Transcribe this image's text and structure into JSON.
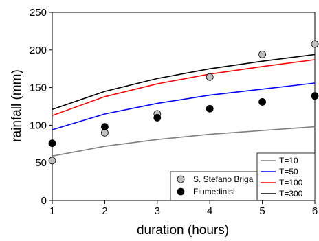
{
  "chart_data": {
    "type": "line",
    "xlabel": "duration (hours)",
    "ylabel": "rainfall (mm)",
    "xlim": [
      1,
      6
    ],
    "ylim": [
      0,
      250
    ],
    "x_ticks": [
      1,
      2,
      3,
      4,
      5,
      6
    ],
    "y_ticks": [
      0,
      50,
      100,
      150,
      200,
      250
    ],
    "grid": false,
    "x": [
      1,
      2,
      3,
      4,
      5,
      6
    ],
    "series": [
      {
        "name": "T=10",
        "kind": "line",
        "color": "#808080",
        "values": [
          59,
          72,
          81,
          88,
          93,
          98
        ]
      },
      {
        "name": "T=50",
        "kind": "line",
        "color": "#0000ff",
        "values": [
          94,
          115,
          129,
          140,
          148,
          156
        ]
      },
      {
        "name": "T=100",
        "kind": "line",
        "color": "#ff0000",
        "values": [
          113,
          138,
          155,
          168,
          178,
          187
        ]
      },
      {
        "name": "T=300",
        "kind": "line",
        "color": "#000000",
        "values": [
          121,
          145,
          162,
          175,
          185,
          194
        ]
      },
      {
        "name": "S. Stefano Briga",
        "kind": "marker",
        "color": "#c0c0c0",
        "values": [
          53,
          90,
          115,
          164,
          194,
          208
        ]
      },
      {
        "name": "Fiumedinisi",
        "kind": "marker",
        "color": "#000000",
        "values": [
          76,
          98,
          110,
          122,
          131,
          139
        ]
      }
    ],
    "legend_lines_position": "bottom-right",
    "legend_markers_position": "bottom-right"
  }
}
